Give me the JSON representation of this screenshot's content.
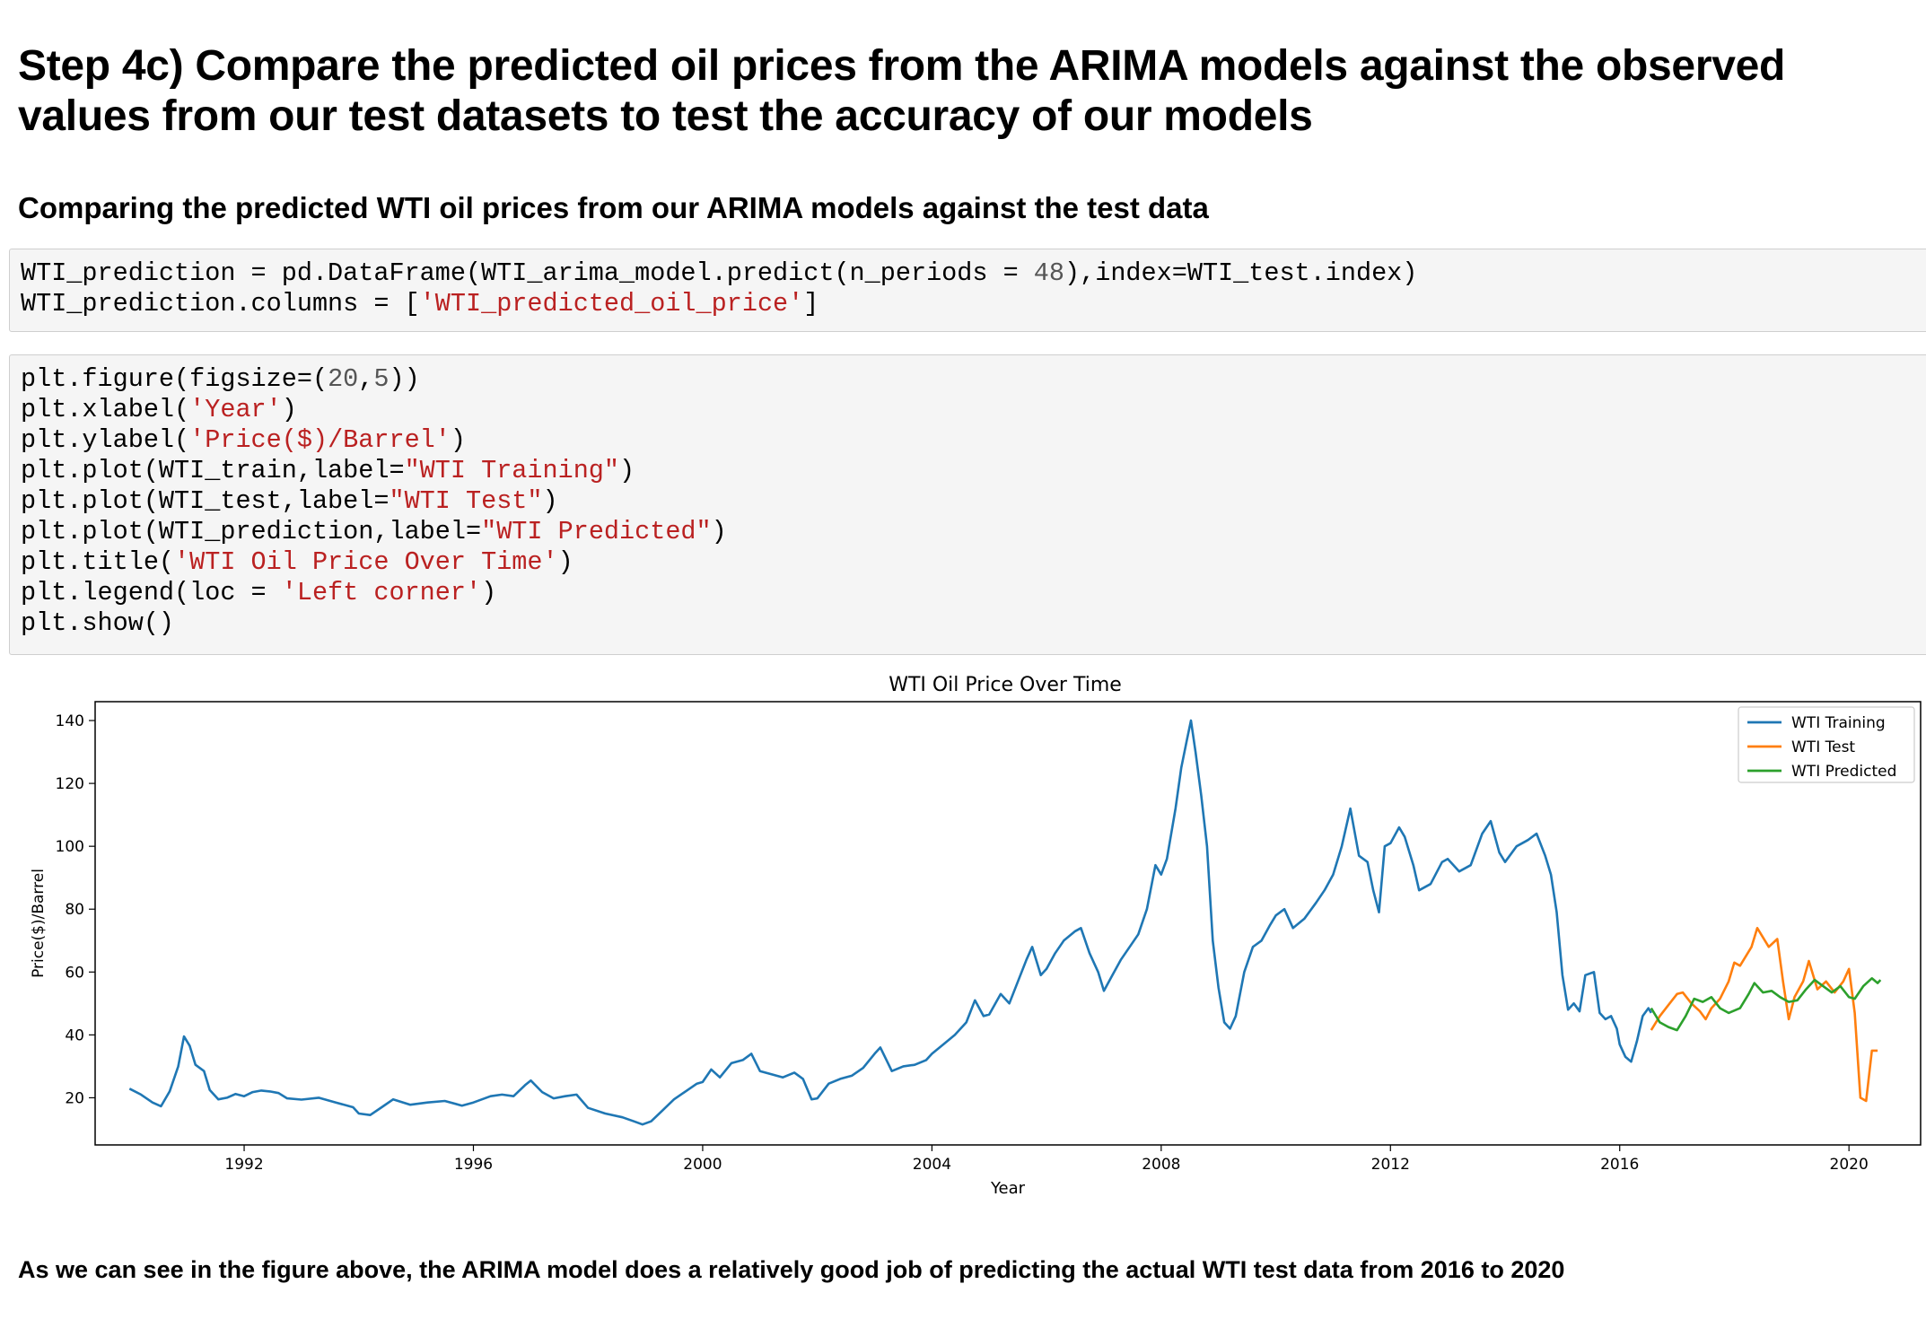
{
  "heading": "Step 4c) Compare the predicted oil prices from the ARIMA models against the observed values from our test datasets to test the accuracy of our models",
  "subheading": "Comparing the predicted WTI oil prices from our ARIMA models against the test data",
  "cells": [
    {
      "lines": [
        "WTI_prediction = pd.DataFrame(WTI_arima_model.predict(n_periods = 48),index=WTI_test.index)",
        "WTI_prediction.columns = ['WTI_predicted_oil_price']"
      ]
    },
    {
      "lines": [
        "plt.figure(figsize=(20,5))",
        "plt.xlabel('Year')",
        "plt.ylabel('Price($)/Barrel')",
        "plt.plot(WTI_train,label=\"WTI Training\")",
        "plt.plot(WTI_test,label=\"WTI Test\")",
        "plt.plot(WTI_prediction,label=\"WTI Predicted\")",
        "plt.title('WTI Oil Price Over Time')",
        "plt.legend(loc = 'Left corner')",
        "plt.show()"
      ]
    }
  ],
  "conclusion": "As we can see in the figure above, the ARIMA model does a relatively good job of predicting the actual WTI test data from 2016 to 2020",
  "chart_data": {
    "type": "line",
    "title": "WTI Oil Price Over Time",
    "xlabel": "Year",
    "ylabel": "Price($)/Barrel",
    "xlim": [
      1989.4,
      2021.25
    ],
    "ylim": [
      5,
      146
    ],
    "xticks": [
      1992,
      1996,
      2000,
      2004,
      2008,
      2012,
      2016,
      2020
    ],
    "yticks": [
      20,
      40,
      60,
      80,
      100,
      120,
      140
    ],
    "legend_position": "top-right",
    "grid": false,
    "series": [
      {
        "name": "WTI Training",
        "color": "#1f77b4",
        "points": [
          [
            1990.0,
            22.9
          ],
          [
            1990.2,
            21.0
          ],
          [
            1990.4,
            18.5
          ],
          [
            1990.55,
            17.3
          ],
          [
            1990.7,
            22.0
          ],
          [
            1990.85,
            30.0
          ],
          [
            1990.95,
            39.5
          ],
          [
            1991.05,
            36.5
          ],
          [
            1991.15,
            30.5
          ],
          [
            1991.3,
            28.5
          ],
          [
            1991.4,
            22.5
          ],
          [
            1991.55,
            19.5
          ],
          [
            1991.7,
            20.0
          ],
          [
            1991.85,
            21.2
          ],
          [
            1992.0,
            20.5
          ],
          [
            1992.15,
            21.8
          ],
          [
            1992.3,
            22.3
          ],
          [
            1992.45,
            22.0
          ],
          [
            1992.6,
            21.5
          ],
          [
            1992.75,
            19.8
          ],
          [
            1993.0,
            19.4
          ],
          [
            1993.3,
            20.0
          ],
          [
            1993.6,
            18.5
          ],
          [
            1993.9,
            17.0
          ],
          [
            1994.0,
            15.0
          ],
          [
            1994.2,
            14.5
          ],
          [
            1994.4,
            17.0
          ],
          [
            1994.6,
            19.5
          ],
          [
            1994.9,
            17.8
          ],
          [
            1995.2,
            18.5
          ],
          [
            1995.5,
            19.0
          ],
          [
            1995.8,
            17.5
          ],
          [
            1996.0,
            18.5
          ],
          [
            1996.3,
            20.5
          ],
          [
            1996.5,
            21.0
          ],
          [
            1996.7,
            20.5
          ],
          [
            1996.9,
            24.0
          ],
          [
            1997.0,
            25.5
          ],
          [
            1997.2,
            21.8
          ],
          [
            1997.4,
            19.8
          ],
          [
            1997.6,
            20.5
          ],
          [
            1997.8,
            21.0
          ],
          [
            1998.0,
            16.8
          ],
          [
            1998.3,
            15.0
          ],
          [
            1998.6,
            13.8
          ],
          [
            1998.8,
            12.5
          ],
          [
            1998.95,
            11.5
          ],
          [
            1999.1,
            12.5
          ],
          [
            1999.3,
            16.0
          ],
          [
            1999.5,
            19.5
          ],
          [
            1999.7,
            22.0
          ],
          [
            1999.9,
            24.5
          ],
          [
            2000.0,
            25.0
          ],
          [
            2000.15,
            29.0
          ],
          [
            2000.3,
            26.5
          ],
          [
            2000.5,
            31.0
          ],
          [
            2000.7,
            32.0
          ],
          [
            2000.85,
            34.0
          ],
          [
            2001.0,
            28.5
          ],
          [
            2001.2,
            27.5
          ],
          [
            2001.4,
            26.5
          ],
          [
            2001.6,
            28.0
          ],
          [
            2001.75,
            26.0
          ],
          [
            2001.9,
            19.5
          ],
          [
            2002.0,
            19.8
          ],
          [
            2002.2,
            24.5
          ],
          [
            2002.4,
            26.0
          ],
          [
            2002.6,
            27.0
          ],
          [
            2002.8,
            29.5
          ],
          [
            2003.0,
            34.0
          ],
          [
            2003.1,
            36.0
          ],
          [
            2003.3,
            28.5
          ],
          [
            2003.5,
            30.0
          ],
          [
            2003.7,
            30.5
          ],
          [
            2003.9,
            32.0
          ],
          [
            2004.0,
            34.0
          ],
          [
            2004.2,
            37.0
          ],
          [
            2004.4,
            40.0
          ],
          [
            2004.6,
            44.0
          ],
          [
            2004.75,
            51.0
          ],
          [
            2004.9,
            46.0
          ],
          [
            2005.0,
            46.5
          ],
          [
            2005.2,
            53.0
          ],
          [
            2005.35,
            50.0
          ],
          [
            2005.5,
            57.0
          ],
          [
            2005.65,
            64.0
          ],
          [
            2005.75,
            68.0
          ],
          [
            2005.9,
            59.0
          ],
          [
            2006.0,
            61.0
          ],
          [
            2006.15,
            66.0
          ],
          [
            2006.3,
            70.0
          ],
          [
            2006.5,
            73.0
          ],
          [
            2006.6,
            74.0
          ],
          [
            2006.75,
            66.0
          ],
          [
            2006.9,
            60.0
          ],
          [
            2007.0,
            54.0
          ],
          [
            2007.15,
            59.0
          ],
          [
            2007.3,
            64.0
          ],
          [
            2007.45,
            68.0
          ],
          [
            2007.6,
            72.0
          ],
          [
            2007.75,
            80.0
          ],
          [
            2007.9,
            94.0
          ],
          [
            2008.0,
            91.0
          ],
          [
            2008.1,
            96.0
          ],
          [
            2008.25,
            112.0
          ],
          [
            2008.35,
            125.0
          ],
          [
            2008.45,
            134.0
          ],
          [
            2008.52,
            140.0
          ],
          [
            2008.6,
            130.0
          ],
          [
            2008.7,
            116.0
          ],
          [
            2008.8,
            100.0
          ],
          [
            2008.9,
            70.0
          ],
          [
            2009.0,
            55.0
          ],
          [
            2009.1,
            44.0
          ],
          [
            2009.2,
            42.0
          ],
          [
            2009.3,
            46.0
          ],
          [
            2009.45,
            60.0
          ],
          [
            2009.6,
            68.0
          ],
          [
            2009.75,
            70.0
          ],
          [
            2009.9,
            75.0
          ],
          [
            2010.0,
            78.0
          ],
          [
            2010.15,
            80.0
          ],
          [
            2010.3,
            74.0
          ],
          [
            2010.5,
            77.0
          ],
          [
            2010.7,
            82.0
          ],
          [
            2010.85,
            86.0
          ],
          [
            2011.0,
            91.0
          ],
          [
            2011.15,
            100.0
          ],
          [
            2011.3,
            112.0
          ],
          [
            2011.45,
            97.0
          ],
          [
            2011.6,
            95.0
          ],
          [
            2011.7,
            86.0
          ],
          [
            2011.8,
            79.0
          ],
          [
            2011.9,
            100.0
          ],
          [
            2012.0,
            101.0
          ],
          [
            2012.15,
            106.0
          ],
          [
            2012.25,
            103.0
          ],
          [
            2012.4,
            94.0
          ],
          [
            2012.5,
            86.0
          ],
          [
            2012.7,
            88.0
          ],
          [
            2012.9,
            95.0
          ],
          [
            2013.0,
            96.0
          ],
          [
            2013.2,
            92.0
          ],
          [
            2013.4,
            94.0
          ],
          [
            2013.6,
            104.0
          ],
          [
            2013.75,
            108.0
          ],
          [
            2013.9,
            98.0
          ],
          [
            2014.0,
            95.0
          ],
          [
            2014.2,
            100.0
          ],
          [
            2014.4,
            102.0
          ],
          [
            2014.55,
            104.0
          ],
          [
            2014.7,
            97.0
          ],
          [
            2014.8,
            91.0
          ],
          [
            2014.9,
            79.0
          ],
          [
            2015.0,
            59.0
          ],
          [
            2015.1,
            48.0
          ],
          [
            2015.2,
            50.0
          ],
          [
            2015.3,
            47.5
          ],
          [
            2015.4,
            59.0
          ],
          [
            2015.55,
            60.0
          ],
          [
            2015.65,
            47.0
          ],
          [
            2015.75,
            45.0
          ],
          [
            2015.85,
            46.0
          ],
          [
            2015.95,
            42.0
          ],
          [
            2016.0,
            37.0
          ],
          [
            2016.1,
            33.0
          ],
          [
            2016.2,
            31.5
          ],
          [
            2016.3,
            38.0
          ],
          [
            2016.4,
            46.0
          ],
          [
            2016.5,
            48.5
          ],
          [
            2016.55,
            47.0
          ]
        ]
      },
      {
        "name": "WTI Test",
        "color": "#ff7f0e",
        "points": [
          [
            2016.55,
            41.5
          ],
          [
            2016.7,
            46.0
          ],
          [
            2016.85,
            49.5
          ],
          [
            2017.0,
            53.0
          ],
          [
            2017.1,
            53.5
          ],
          [
            2017.25,
            50.0
          ],
          [
            2017.4,
            47.5
          ],
          [
            2017.5,
            45.0
          ],
          [
            2017.6,
            48.5
          ],
          [
            2017.75,
            51.5
          ],
          [
            2017.9,
            57.0
          ],
          [
            2018.0,
            63.0
          ],
          [
            2018.1,
            62.0
          ],
          [
            2018.2,
            65.0
          ],
          [
            2018.3,
            68.0
          ],
          [
            2018.4,
            74.0
          ],
          [
            2018.5,
            71.0
          ],
          [
            2018.6,
            68.0
          ],
          [
            2018.75,
            70.5
          ],
          [
            2018.85,
            57.0
          ],
          [
            2018.95,
            45.0
          ],
          [
            2019.05,
            52.0
          ],
          [
            2019.2,
            57.0
          ],
          [
            2019.3,
            63.5
          ],
          [
            2019.45,
            54.5
          ],
          [
            2019.6,
            57.0
          ],
          [
            2019.75,
            53.5
          ],
          [
            2019.9,
            57.0
          ],
          [
            2020.0,
            61.0
          ],
          [
            2020.1,
            47.0
          ],
          [
            2020.2,
            20.0
          ],
          [
            2020.3,
            19.0
          ],
          [
            2020.4,
            35.0
          ],
          [
            2020.5,
            35.0
          ]
        ]
      },
      {
        "name": "WTI Predicted",
        "color": "#2ca02c",
        "points": [
          [
            2016.55,
            48.5
          ],
          [
            2016.7,
            44.0
          ],
          [
            2016.85,
            42.5
          ],
          [
            2017.0,
            41.5
          ],
          [
            2017.15,
            46.0
          ],
          [
            2017.3,
            51.5
          ],
          [
            2017.45,
            50.5
          ],
          [
            2017.6,
            52.0
          ],
          [
            2017.75,
            48.5
          ],
          [
            2017.9,
            47.0
          ],
          [
            2018.1,
            48.5
          ],
          [
            2018.25,
            53.0
          ],
          [
            2018.35,
            56.5
          ],
          [
            2018.5,
            53.5
          ],
          [
            2018.65,
            54.0
          ],
          [
            2018.8,
            52.0
          ],
          [
            2018.95,
            50.5
          ],
          [
            2019.1,
            51.0
          ],
          [
            2019.25,
            54.5
          ],
          [
            2019.4,
            57.5
          ],
          [
            2019.55,
            55.5
          ],
          [
            2019.7,
            53.5
          ],
          [
            2019.85,
            55.5
          ],
          [
            2020.0,
            52.0
          ],
          [
            2020.1,
            51.5
          ],
          [
            2020.25,
            55.5
          ],
          [
            2020.4,
            58.0
          ],
          [
            2020.5,
            56.5
          ],
          [
            2020.55,
            57.5
          ]
        ]
      }
    ]
  }
}
